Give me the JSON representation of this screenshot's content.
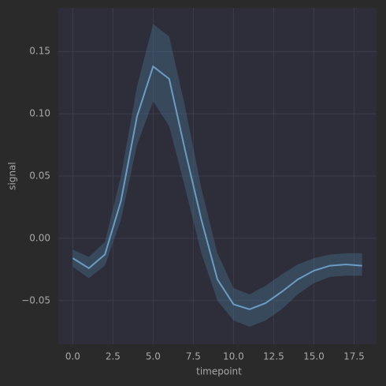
{
  "chart_data": {
    "type": "line",
    "x_label": "timepoint",
    "y_label": "signal",
    "x": [
      0,
      1,
      2,
      3,
      4,
      5,
      6,
      7,
      8,
      9,
      10,
      11,
      12,
      13,
      14,
      15,
      16,
      17,
      18
    ],
    "series": [
      {
        "color": "#6a9cc4",
        "band_color": "#4a7a9a",
        "values": [
          -0.016,
          -0.024,
          -0.013,
          0.03,
          0.098,
          0.138,
          0.128,
          0.07,
          0.015,
          -0.033,
          -0.053,
          -0.057,
          -0.052,
          -0.043,
          -0.033,
          -0.026,
          -0.022,
          -0.021,
          -0.022
        ],
        "ci_upper": [
          -0.009,
          -0.015,
          -0.003,
          0.05,
          0.122,
          0.172,
          0.162,
          0.105,
          0.04,
          -0.012,
          -0.04,
          -0.045,
          -0.038,
          -0.029,
          -0.021,
          -0.016,
          -0.013,
          -0.012,
          -0.012
        ],
        "ci_lower": [
          -0.023,
          -0.032,
          -0.022,
          0.015,
          0.075,
          0.11,
          0.09,
          0.04,
          -0.012,
          -0.05,
          -0.066,
          -0.071,
          -0.066,
          -0.057,
          -0.045,
          -0.036,
          -0.031,
          -0.03,
          -0.03
        ]
      }
    ],
    "xlim": [
      -0.9,
      18.9
    ],
    "ylim": [
      -0.085,
      0.185
    ],
    "xticks": [
      {
        "value": 0,
        "label": "0.0"
      },
      2.5,
      {
        "value": 5,
        "label": "5.0"
      },
      7.5,
      {
        "value": 10,
        "label": "10.0"
      },
      12.5,
      {
        "value": 15,
        "label": "15.0"
      },
      17.5
    ],
    "yticks": [
      {
        "value": -0.05,
        "label": "−0.05"
      },
      {
        "value": 0,
        "label": "0.00"
      },
      0.05,
      {
        "value": 0.1,
        "label": "0.10"
      },
      0.15
    ],
    "grid": true
  }
}
